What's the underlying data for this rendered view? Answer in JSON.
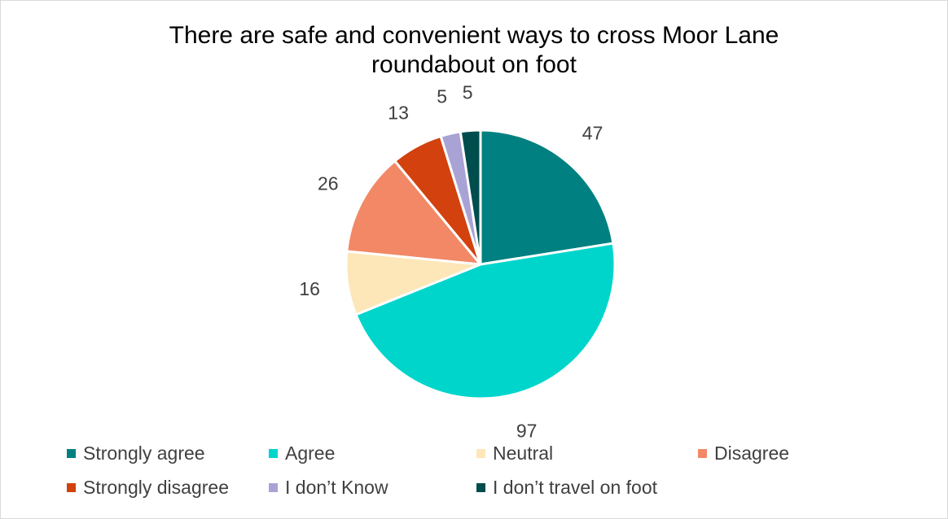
{
  "chart_data": {
    "type": "pie",
    "title_lines": [
      "There are safe and convenient ways to cross Moor Lane",
      "roundabout on foot"
    ],
    "categories": [
      "Strongly agree",
      "Agree",
      "Neutral",
      "Disagree",
      "Strongly disagree",
      "I don’t Know",
      "I don’t travel on foot"
    ],
    "values": [
      47,
      97,
      16,
      26,
      13,
      5,
      5
    ],
    "data_labels": [
      "47",
      "97",
      "16",
      "26",
      "13",
      "5",
      "5"
    ],
    "colors": [
      "#008080",
      "#00d5cc",
      "#fde6b8",
      "#f28866",
      "#d2410e",
      "#a9a3d5",
      "#004d4d"
    ],
    "legend_position": "bottom",
    "start_angle": "12 o'clock",
    "direction": "clockwise"
  }
}
